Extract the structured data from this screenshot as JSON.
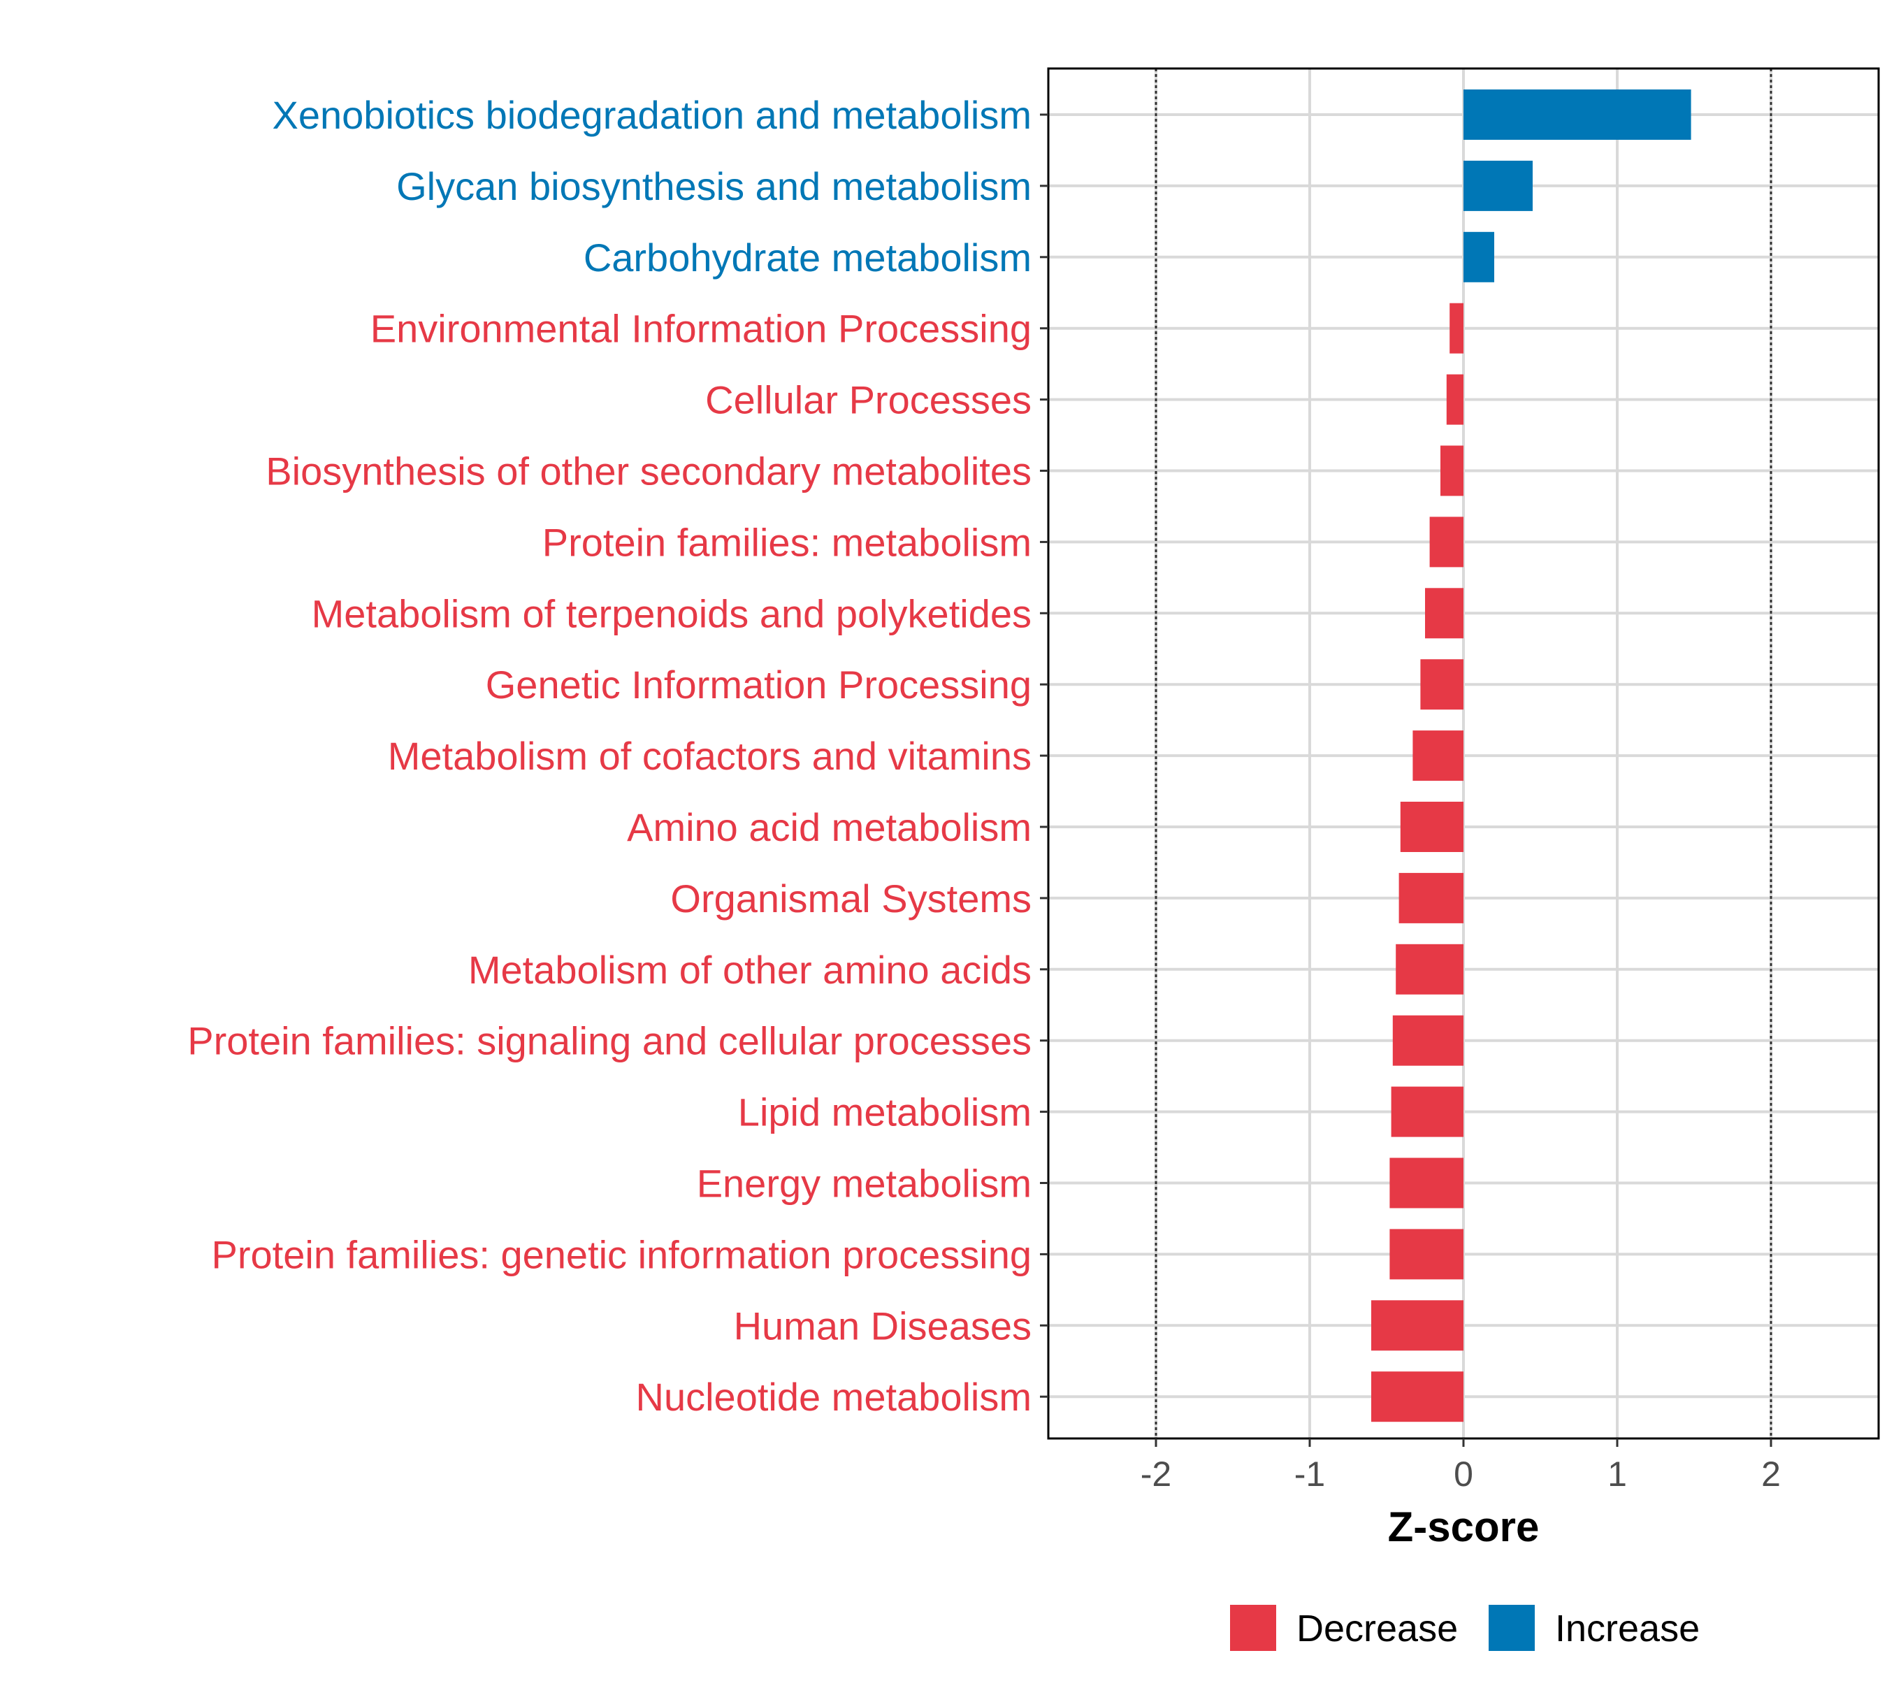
{
  "chart_data": {
    "type": "bar",
    "orientation": "horizontal",
    "xlabel": "Z-score",
    "ylabel": "",
    "xlim": [
      -2.7,
      2.7
    ],
    "x_ticks": [
      -2,
      -1,
      0,
      1,
      2
    ],
    "x_tick_labels": [
      "-2",
      "-1",
      "0",
      "1",
      "2"
    ],
    "reference_lines": [
      -2,
      2
    ],
    "grid": true,
    "legend_position": "bottom",
    "colors": {
      "Decrease": "#E63946",
      "Increase": "#0077B6"
    },
    "legend": [
      {
        "label": "Decrease",
        "color": "#E63946"
      },
      {
        "label": "Increase",
        "color": "#0077B6"
      }
    ],
    "categories": [
      "Xenobiotics biodegradation and metabolism",
      "Glycan biosynthesis and metabolism",
      "Carbohydrate metabolism",
      "Environmental Information Processing",
      "Cellular Processes",
      "Biosynthesis of other secondary metabolites",
      "Protein families: metabolism",
      "Metabolism of terpenoids and polyketides",
      "Genetic Information Processing",
      "Metabolism of cofactors and vitamins",
      "Amino acid metabolism",
      "Organismal Systems",
      "Metabolism of other amino acids",
      "Protein families: signaling and cellular processes",
      "Lipid metabolism",
      "Energy metabolism",
      "Protein families: genetic information processing",
      "Human Diseases",
      "Nucleotide metabolism"
    ],
    "values": [
      1.48,
      0.45,
      0.2,
      -0.09,
      -0.11,
      -0.15,
      -0.22,
      -0.25,
      -0.28,
      -0.33,
      -0.41,
      -0.42,
      -0.44,
      -0.46,
      -0.47,
      -0.48,
      -0.48,
      -0.6,
      -0.6
    ],
    "groups": [
      "Increase",
      "Increase",
      "Increase",
      "Decrease",
      "Decrease",
      "Decrease",
      "Decrease",
      "Decrease",
      "Decrease",
      "Decrease",
      "Decrease",
      "Decrease",
      "Decrease",
      "Decrease",
      "Decrease",
      "Decrease",
      "Decrease",
      "Decrease",
      "Decrease"
    ]
  }
}
